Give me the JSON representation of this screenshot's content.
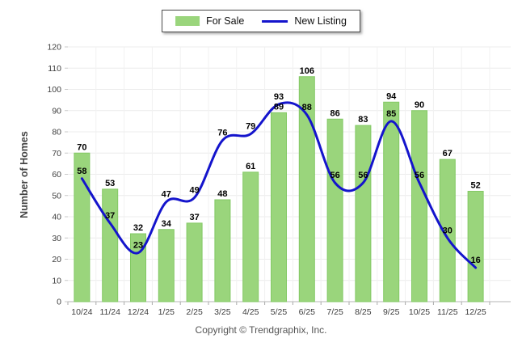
{
  "chart_data": {
    "type": "combo",
    "categories": [
      "10/24",
      "11/24",
      "12/24",
      "1/25",
      "2/25",
      "3/25",
      "4/25",
      "5/25",
      "6/25",
      "7/25",
      "8/25",
      "9/25",
      "10/25",
      "11/25",
      "12/25"
    ],
    "series": [
      {
        "name": "For Sale",
        "type": "bar",
        "color": "#9ad57c",
        "border_color": "#83c964",
        "values": [
          70,
          53,
          32,
          34,
          37,
          48,
          61,
          89,
          106,
          86,
          83,
          94,
          90,
          67,
          52
        ]
      },
      {
        "name": "New Listing",
        "type": "line",
        "color": "#1414cc",
        "values": [
          58,
          37,
          23,
          47,
          49,
          76,
          79,
          93,
          88,
          56,
          56,
          85,
          56,
          30,
          16
        ]
      }
    ],
    "title": "",
    "xlabel": "",
    "ylabel": "Number of Homes",
    "ylim": [
      0,
      120
    ],
    "ytick_step": 10,
    "grid": true,
    "legend_position": "top-center",
    "label_color": "#000000",
    "grid_color": "#ececec",
    "axis_color": "#b5b5b5",
    "tick_text_color": "#3d3d3d"
  },
  "footer": {
    "text": "Copyright © Trendgraphix, Inc."
  }
}
